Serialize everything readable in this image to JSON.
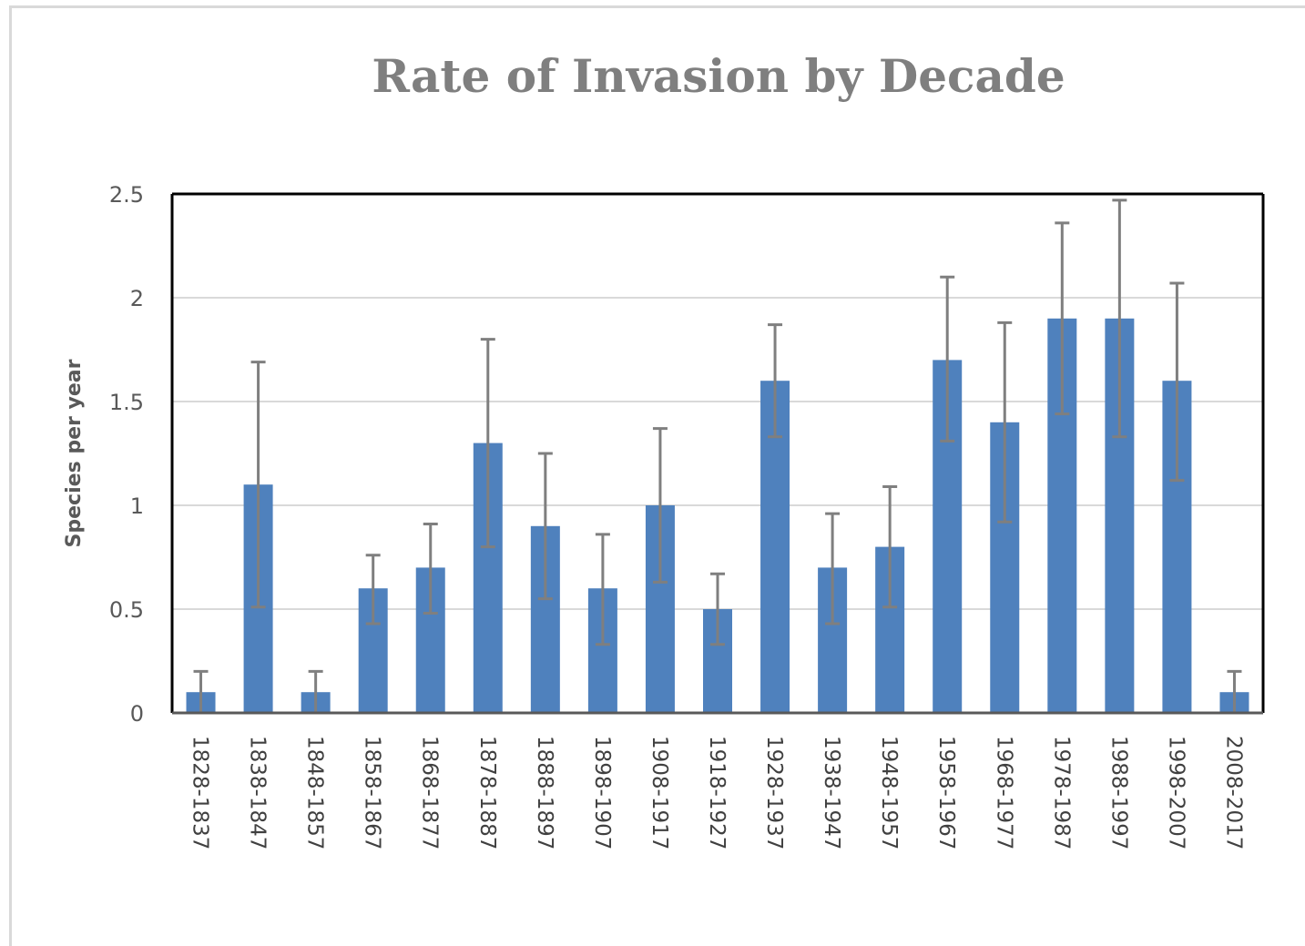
{
  "chart_data": {
    "type": "bar",
    "title": "Rate of Invasion by Decade",
    "xlabel": "",
    "ylabel": "Species per year",
    "ylim": [
      0,
      2.5
    ],
    "yticks": [
      "0",
      "0.5",
      "1",
      "1.5",
      "2",
      "2.5"
    ],
    "grid": true,
    "legend": "none",
    "colors": {
      "bar": "#4f81bd",
      "error_bar": "#7f7f7f",
      "grid": "#d9d9d9",
      "plot_border": "#000000",
      "title": "#7f7f7f"
    },
    "categories": [
      "1828-1837",
      "1838-1847",
      "1848-1857",
      "1858-1867",
      "1868-1877",
      "1878-1887",
      "1888-1897",
      "1898-1907",
      "1908-1917",
      "1918-1927",
      "1928-1937",
      "1938-1947",
      "1948-1957",
      "1958-1967",
      "1968-1977",
      "1978-1987",
      "1988-1997",
      "1998-2007",
      "2008-2017"
    ],
    "values": [
      0.1,
      1.1,
      0.1,
      0.6,
      0.7,
      1.3,
      0.9,
      0.6,
      1.0,
      0.5,
      1.6,
      0.7,
      0.8,
      1.7,
      1.4,
      1.9,
      1.9,
      1.6,
      0.1
    ],
    "error_low": [
      0.0,
      0.51,
      0.0,
      0.43,
      0.48,
      0.8,
      0.55,
      0.33,
      0.63,
      0.33,
      1.33,
      0.43,
      0.51,
      1.31,
      0.92,
      1.44,
      1.33,
      1.12,
      0.0
    ],
    "error_high": [
      0.2,
      1.69,
      0.2,
      0.76,
      0.91,
      1.8,
      1.25,
      0.86,
      1.37,
      0.67,
      1.87,
      0.96,
      1.09,
      2.1,
      1.88,
      2.36,
      2.47,
      2.07,
      0.2
    ]
  }
}
